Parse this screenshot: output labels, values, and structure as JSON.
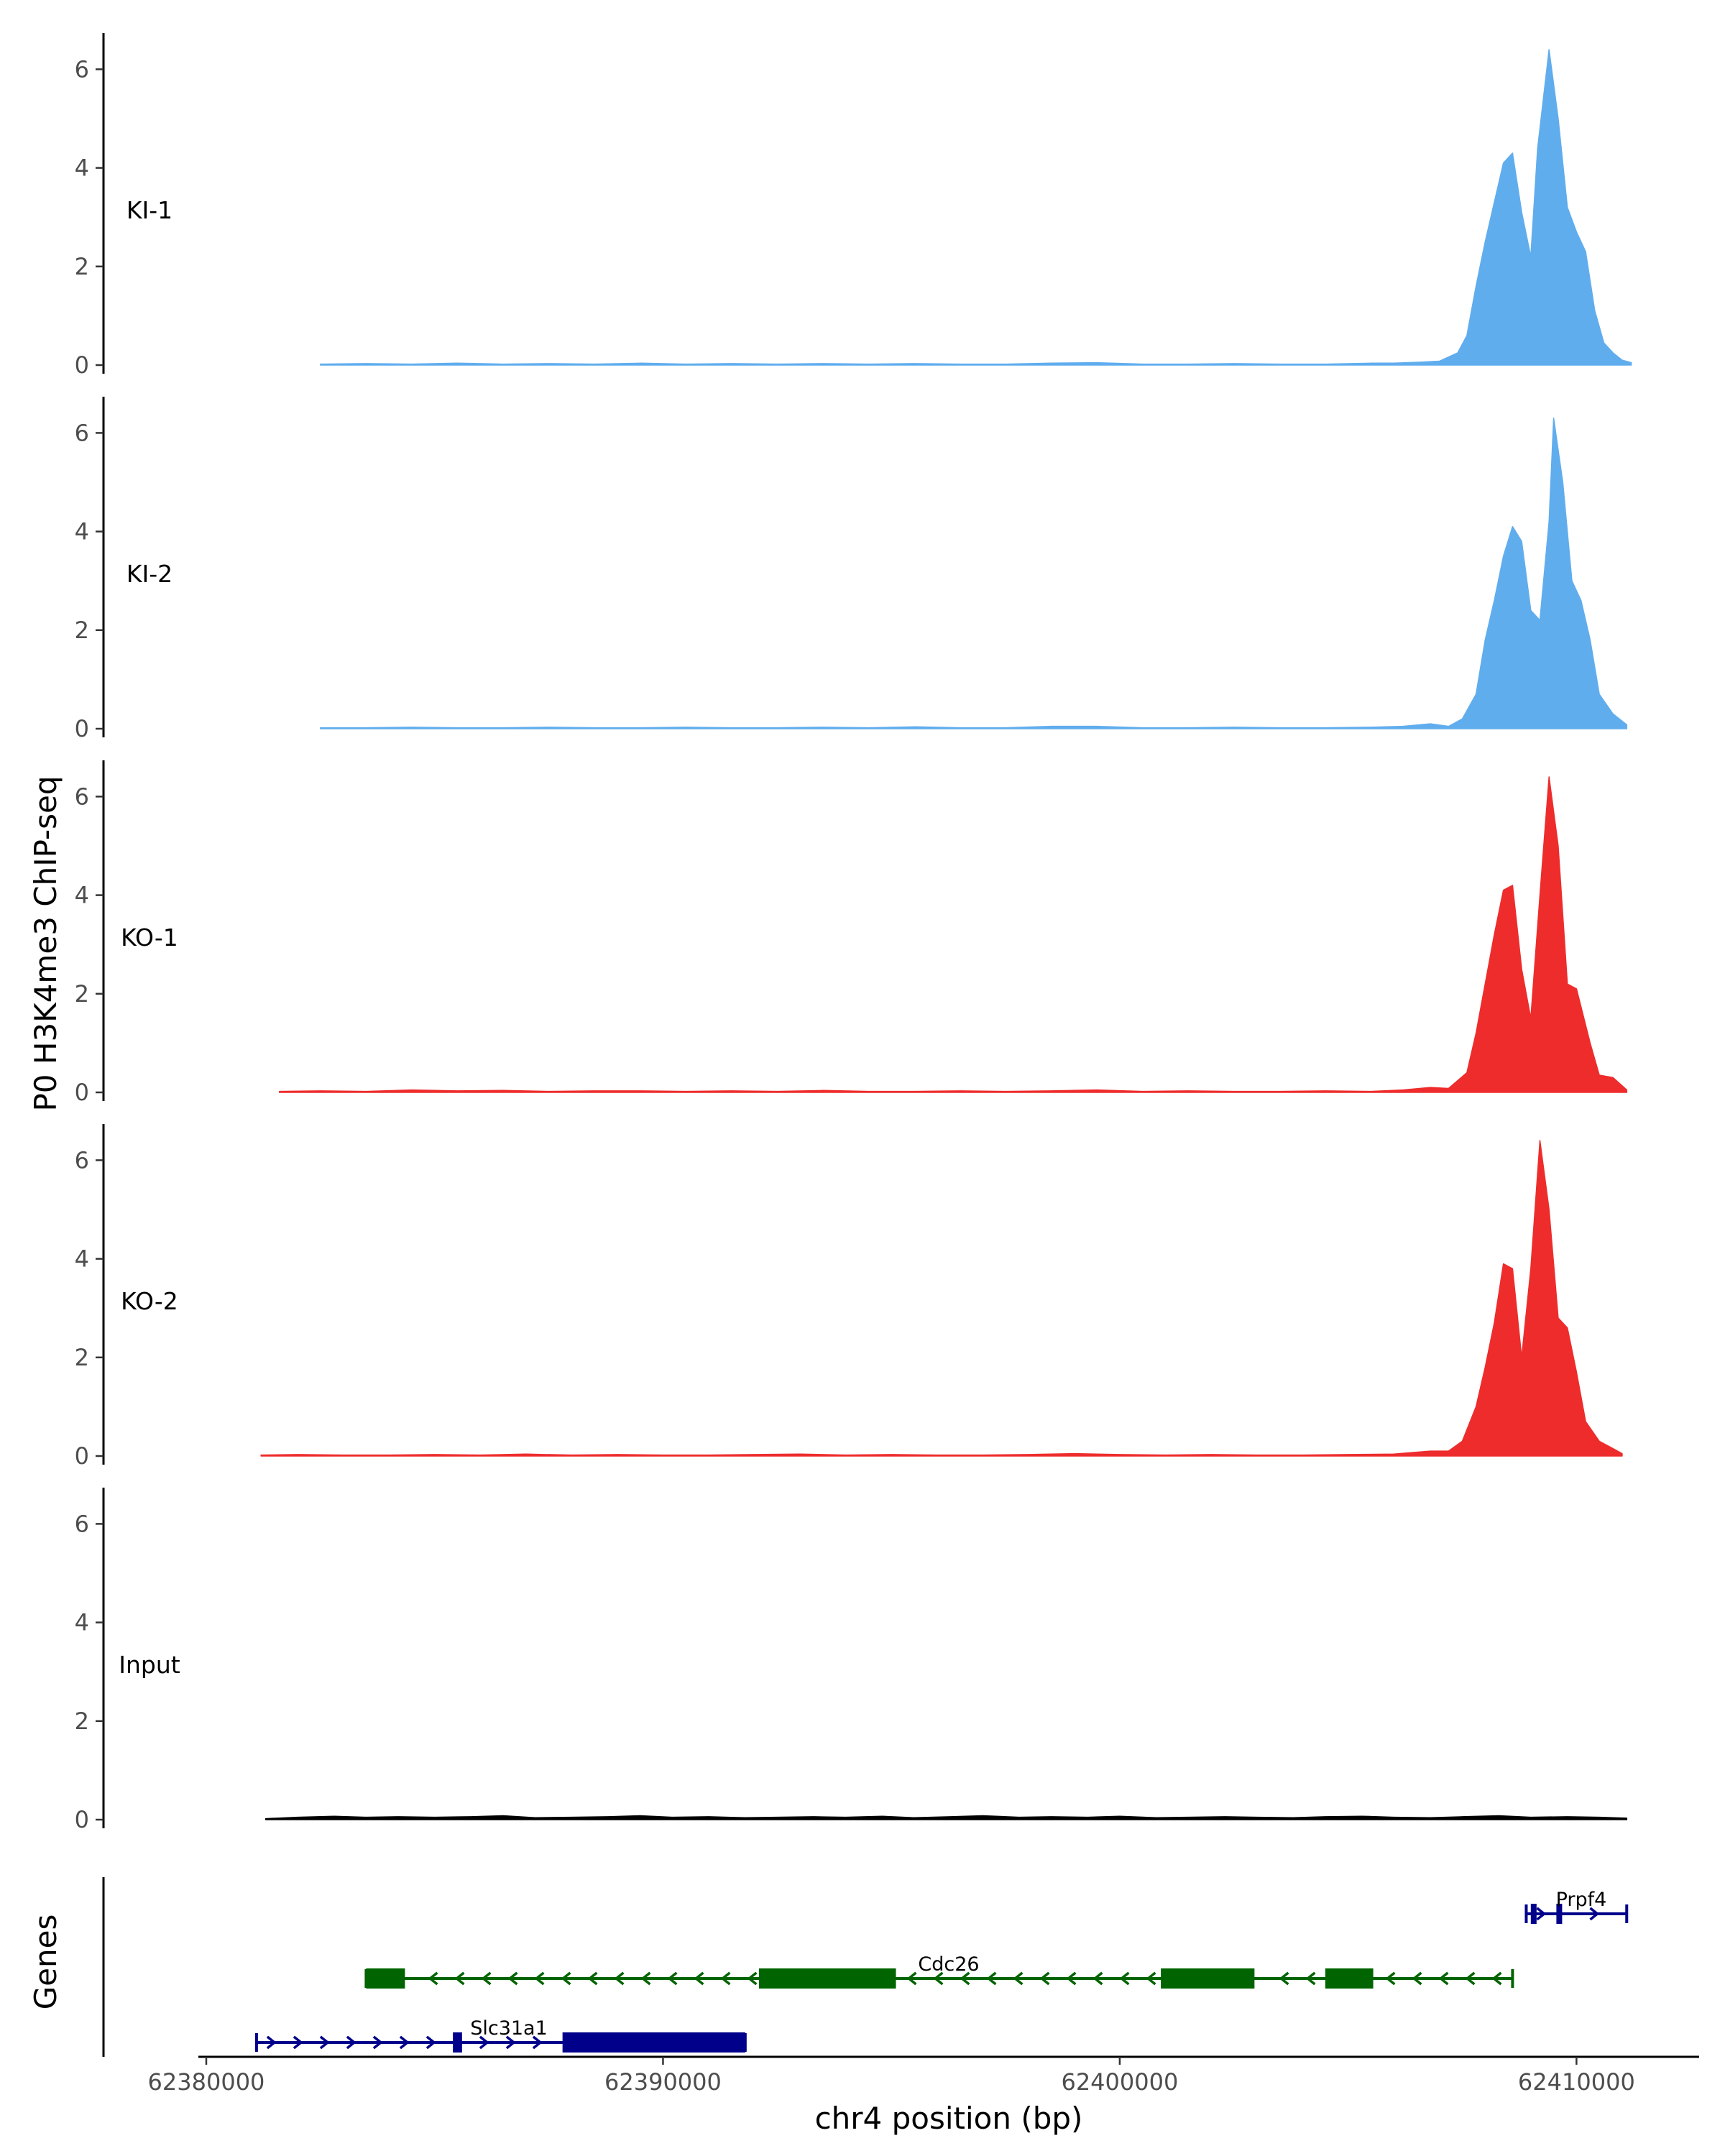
{
  "chart_data": {
    "type": "area",
    "ylabel": "P0 H3K4me3 ChIP-seq",
    "xlabel": "chr4 position (bp)",
    "xlim": [
      62377750,
      62413000
    ],
    "ylim": [
      0,
      6.6
    ],
    "y_ticks": [
      0,
      2,
      4,
      6
    ],
    "x_ticks": [
      62380000,
      62390000,
      62400000,
      62410000
    ],
    "x_tick_labels": [
      "62380000",
      "62390000",
      "62400000",
      "62410000"
    ],
    "tracks": [
      {
        "label": "KI-1",
        "color": "#60ADEE",
        "points": [
          [
            62382500,
            0.02
          ],
          [
            62383500,
            0.03
          ],
          [
            62384500,
            0.02
          ],
          [
            62385500,
            0.04
          ],
          [
            62386500,
            0.02
          ],
          [
            62387500,
            0.03
          ],
          [
            62388500,
            0.02
          ],
          [
            62389500,
            0.04
          ],
          [
            62390500,
            0.02
          ],
          [
            62391500,
            0.03
          ],
          [
            62392500,
            0.02
          ],
          [
            62393500,
            0.03
          ],
          [
            62394500,
            0.02
          ],
          [
            62395500,
            0.03
          ],
          [
            62396500,
            0.02
          ],
          [
            62397500,
            0.02
          ],
          [
            62398500,
            0.04
          ],
          [
            62399500,
            0.05
          ],
          [
            62400500,
            0.02
          ],
          [
            62401500,
            0.02
          ],
          [
            62402500,
            0.03
          ],
          [
            62403500,
            0.02
          ],
          [
            62404500,
            0.02
          ],
          [
            62405500,
            0.04
          ],
          [
            62406000,
            0.04
          ],
          [
            62406600,
            0.06
          ],
          [
            62407000,
            0.08
          ],
          [
            62407400,
            0.25
          ],
          [
            62407600,
            0.6
          ],
          [
            62407800,
            1.6
          ],
          [
            62408000,
            2.5
          ],
          [
            62408200,
            3.3
          ],
          [
            62408400,
            4.1
          ],
          [
            62408600,
            4.3
          ],
          [
            62408800,
            3.1
          ],
          [
            62409000,
            2.2
          ],
          [
            62409150,
            4.4
          ],
          [
            62409400,
            6.4
          ],
          [
            62409600,
            5.0
          ],
          [
            62409800,
            3.2
          ],
          [
            62410000,
            2.7
          ],
          [
            62410200,
            2.3
          ],
          [
            62410400,
            1.1
          ],
          [
            62410600,
            0.45
          ],
          [
            62410800,
            0.25
          ],
          [
            62411000,
            0.1
          ],
          [
            62411200,
            0.05
          ]
        ]
      },
      {
        "label": "KI-2",
        "color": "#60ADEE",
        "points": [
          [
            62382500,
            0.02
          ],
          [
            62383500,
            0.02
          ],
          [
            62384500,
            0.03
          ],
          [
            62385500,
            0.02
          ],
          [
            62386500,
            0.02
          ],
          [
            62387500,
            0.03
          ],
          [
            62388500,
            0.02
          ],
          [
            62389500,
            0.02
          ],
          [
            62390500,
            0.03
          ],
          [
            62391500,
            0.02
          ],
          [
            62392500,
            0.02
          ],
          [
            62393500,
            0.03
          ],
          [
            62394500,
            0.02
          ],
          [
            62395500,
            0.04
          ],
          [
            62396500,
            0.02
          ],
          [
            62397500,
            0.02
          ],
          [
            62398500,
            0.05
          ],
          [
            62399500,
            0.05
          ],
          [
            62400500,
            0.02
          ],
          [
            62401500,
            0.02
          ],
          [
            62402500,
            0.03
          ],
          [
            62403500,
            0.02
          ],
          [
            62404500,
            0.02
          ],
          [
            62405500,
            0.03
          ],
          [
            62406200,
            0.05
          ],
          [
            62406800,
            0.1
          ],
          [
            62407200,
            0.05
          ],
          [
            62407500,
            0.2
          ],
          [
            62407800,
            0.7
          ],
          [
            62408000,
            1.8
          ],
          [
            62408200,
            2.6
          ],
          [
            62408400,
            3.5
          ],
          [
            62408600,
            4.1
          ],
          [
            62408800,
            3.8
          ],
          [
            62409000,
            2.4
          ],
          [
            62409200,
            2.2
          ],
          [
            62409400,
            4.2
          ],
          [
            62409500,
            6.3
          ],
          [
            62409700,
            5.0
          ],
          [
            62409900,
            3.0
          ],
          [
            62410100,
            2.6
          ],
          [
            62410300,
            1.8
          ],
          [
            62410500,
            0.7
          ],
          [
            62410800,
            0.3
          ],
          [
            62411100,
            0.08
          ]
        ]
      },
      {
        "label": "KO-1",
        "color": "#EE2C2C",
        "points": [
          [
            62381600,
            0.02
          ],
          [
            62382500,
            0.03
          ],
          [
            62383500,
            0.02
          ],
          [
            62384500,
            0.05
          ],
          [
            62385500,
            0.03
          ],
          [
            62386500,
            0.04
          ],
          [
            62387500,
            0.02
          ],
          [
            62388500,
            0.03
          ],
          [
            62389500,
            0.03
          ],
          [
            62390500,
            0.02
          ],
          [
            62391500,
            0.03
          ],
          [
            62392500,
            0.02
          ],
          [
            62393500,
            0.04
          ],
          [
            62394500,
            0.02
          ],
          [
            62395500,
            0.02
          ],
          [
            62396500,
            0.03
          ],
          [
            62397500,
            0.02
          ],
          [
            62398500,
            0.03
          ],
          [
            62399500,
            0.05
          ],
          [
            62400500,
            0.02
          ],
          [
            62401500,
            0.03
          ],
          [
            62402500,
            0.02
          ],
          [
            62403500,
            0.02
          ],
          [
            62404500,
            0.03
          ],
          [
            62405500,
            0.02
          ],
          [
            62406200,
            0.05
          ],
          [
            62406800,
            0.1
          ],
          [
            62407200,
            0.08
          ],
          [
            62407600,
            0.4
          ],
          [
            62407800,
            1.2
          ],
          [
            62408000,
            2.2
          ],
          [
            62408200,
            3.2
          ],
          [
            62408400,
            4.1
          ],
          [
            62408600,
            4.2
          ],
          [
            62408800,
            2.5
          ],
          [
            62409000,
            1.5
          ],
          [
            62409200,
            4.0
          ],
          [
            62409400,
            6.4
          ],
          [
            62409600,
            5.0
          ],
          [
            62409800,
            2.2
          ],
          [
            62410000,
            2.1
          ],
          [
            62410300,
            1.0
          ],
          [
            62410500,
            0.35
          ],
          [
            62410800,
            0.3
          ],
          [
            62411100,
            0.05
          ]
        ]
      },
      {
        "label": "KO-2",
        "color": "#EE2C2C",
        "points": [
          [
            62381200,
            0.02
          ],
          [
            62382000,
            0.03
          ],
          [
            62383000,
            0.02
          ],
          [
            62384000,
            0.02
          ],
          [
            62385000,
            0.03
          ],
          [
            62386000,
            0.02
          ],
          [
            62387000,
            0.04
          ],
          [
            62388000,
            0.02
          ],
          [
            62389000,
            0.03
          ],
          [
            62390000,
            0.02
          ],
          [
            62391000,
            0.02
          ],
          [
            62392000,
            0.03
          ],
          [
            62393000,
            0.04
          ],
          [
            62394000,
            0.02
          ],
          [
            62395000,
            0.03
          ],
          [
            62396000,
            0.02
          ],
          [
            62397000,
            0.02
          ],
          [
            62398000,
            0.03
          ],
          [
            62399000,
            0.05
          ],
          [
            62400000,
            0.03
          ],
          [
            62401000,
            0.02
          ],
          [
            62402000,
            0.03
          ],
          [
            62403000,
            0.02
          ],
          [
            62404000,
            0.02
          ],
          [
            62405000,
            0.03
          ],
          [
            62406000,
            0.04
          ],
          [
            62406800,
            0.1
          ],
          [
            62407200,
            0.1
          ],
          [
            62407500,
            0.3
          ],
          [
            62407800,
            1.0
          ],
          [
            62408000,
            1.8
          ],
          [
            62408200,
            2.7
          ],
          [
            62408400,
            3.9
          ],
          [
            62408600,
            3.8
          ],
          [
            62408800,
            2.0
          ],
          [
            62409000,
            3.8
          ],
          [
            62409200,
            6.4
          ],
          [
            62409400,
            5.0
          ],
          [
            62409600,
            2.8
          ],
          [
            62409800,
            2.6
          ],
          [
            62410000,
            1.7
          ],
          [
            62410200,
            0.7
          ],
          [
            62410500,
            0.3
          ],
          [
            62410800,
            0.15
          ],
          [
            62411000,
            0.05
          ]
        ]
      },
      {
        "label": "Input",
        "color": "#000000",
        "points": [
          [
            62381300,
            0.02
          ],
          [
            62382000,
            0.05
          ],
          [
            62382800,
            0.07
          ],
          [
            62383500,
            0.05
          ],
          [
            62384200,
            0.06
          ],
          [
            62385000,
            0.05
          ],
          [
            62385800,
            0.06
          ],
          [
            62386500,
            0.08
          ],
          [
            62387200,
            0.04
          ],
          [
            62388000,
            0.05
          ],
          [
            62388800,
            0.06
          ],
          [
            62389500,
            0.08
          ],
          [
            62390200,
            0.05
          ],
          [
            62391000,
            0.06
          ],
          [
            62391800,
            0.04
          ],
          [
            62392500,
            0.05
          ],
          [
            62393300,
            0.06
          ],
          [
            62394000,
            0.05
          ],
          [
            62394800,
            0.07
          ],
          [
            62395500,
            0.04
          ],
          [
            62396300,
            0.06
          ],
          [
            62397000,
            0.08
          ],
          [
            62397800,
            0.05
          ],
          [
            62398500,
            0.06
          ],
          [
            62399300,
            0.05
          ],
          [
            62400000,
            0.07
          ],
          [
            62400800,
            0.04
          ],
          [
            62401500,
            0.05
          ],
          [
            62402300,
            0.06
          ],
          [
            62403000,
            0.05
          ],
          [
            62403800,
            0.04
          ],
          [
            62404500,
            0.06
          ],
          [
            62405300,
            0.07
          ],
          [
            62406000,
            0.05
          ],
          [
            62406800,
            0.04
          ],
          [
            62407500,
            0.06
          ],
          [
            62408300,
            0.08
          ],
          [
            62409000,
            0.05
          ],
          [
            62409800,
            0.06
          ],
          [
            62410500,
            0.05
          ],
          [
            62411100,
            0.03
          ]
        ]
      }
    ],
    "genes": {
      "title": "Genes",
      "items": [
        {
          "name": "Prpf4",
          "strand": "+",
          "color": "#00008B",
          "start": 62408900,
          "end": 62411100,
          "exons": [
            [
              62409000,
              62409060
            ],
            [
              62409560,
              62409680
            ]
          ],
          "row": 0
        },
        {
          "name": "Cdc26",
          "strand": "-",
          "color": "#006400",
          "start": 62383500,
          "end": 62408600,
          "exons": [
            [
              62383500,
              62384350
            ],
            [
              62392100,
              62395100
            ],
            [
              62400900,
              62402950
            ],
            [
              62404500,
              62405550
            ]
          ],
          "row": 1
        },
        {
          "name": "Slc31a1",
          "strand": "+",
          "color": "#00008B",
          "start": 62381100,
          "end": 62391800,
          "exons": [
            [
              62385400,
              62385600
            ],
            [
              62387800,
              62391800
            ]
          ],
          "row": 2
        }
      ]
    }
  }
}
